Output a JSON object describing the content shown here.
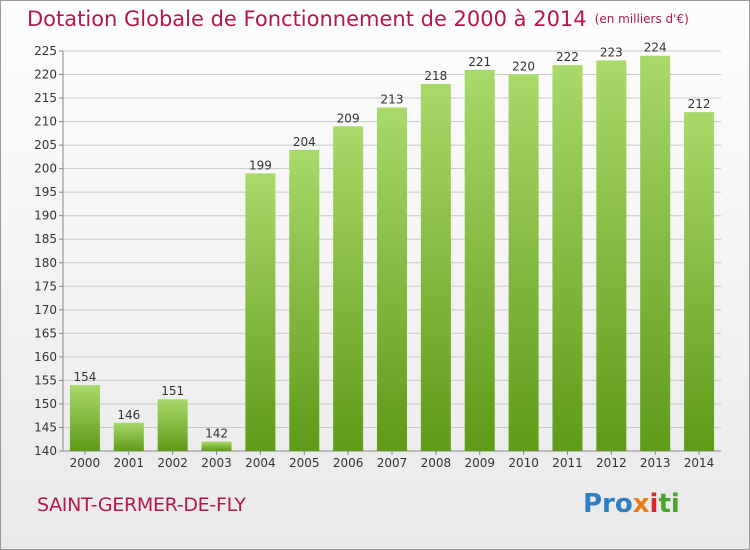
{
  "title": "Dotation Globale de Fonctionnement de 2000 à 2014",
  "unit_note": "(en milliers d'€)",
  "commune": "SAINT-GERMER-DE-FLY",
  "logo": {
    "text": "Proxiti",
    "part1": "Pro",
    "part2": "x",
    "part3": "i",
    "part4": "ti"
  },
  "colors": {
    "title": "#b2184e",
    "bar_top": "#a9d96a",
    "bar_bottom": "#5f9a18",
    "grid": "#c8c8c8"
  },
  "chart_data": {
    "type": "bar",
    "title": "Dotation Globale de Fonctionnement de 2000 à 2014",
    "subtitle": "(en milliers d'€)",
    "xlabel": "",
    "ylabel": "",
    "categories": [
      "2000",
      "2001",
      "2002",
      "2003",
      "2004",
      "2005",
      "2006",
      "2007",
      "2008",
      "2009",
      "2010",
      "2011",
      "2012",
      "2013",
      "2014"
    ],
    "values": [
      154,
      146,
      151,
      142,
      199,
      204,
      209,
      213,
      218,
      221,
      220,
      222,
      223,
      224,
      212
    ],
    "ylim": [
      140,
      225
    ],
    "yticks": [
      140,
      145,
      150,
      155,
      160,
      165,
      170,
      175,
      180,
      185,
      190,
      195,
      200,
      205,
      210,
      215,
      220,
      225
    ],
    "grid": true,
    "legend": "none"
  }
}
